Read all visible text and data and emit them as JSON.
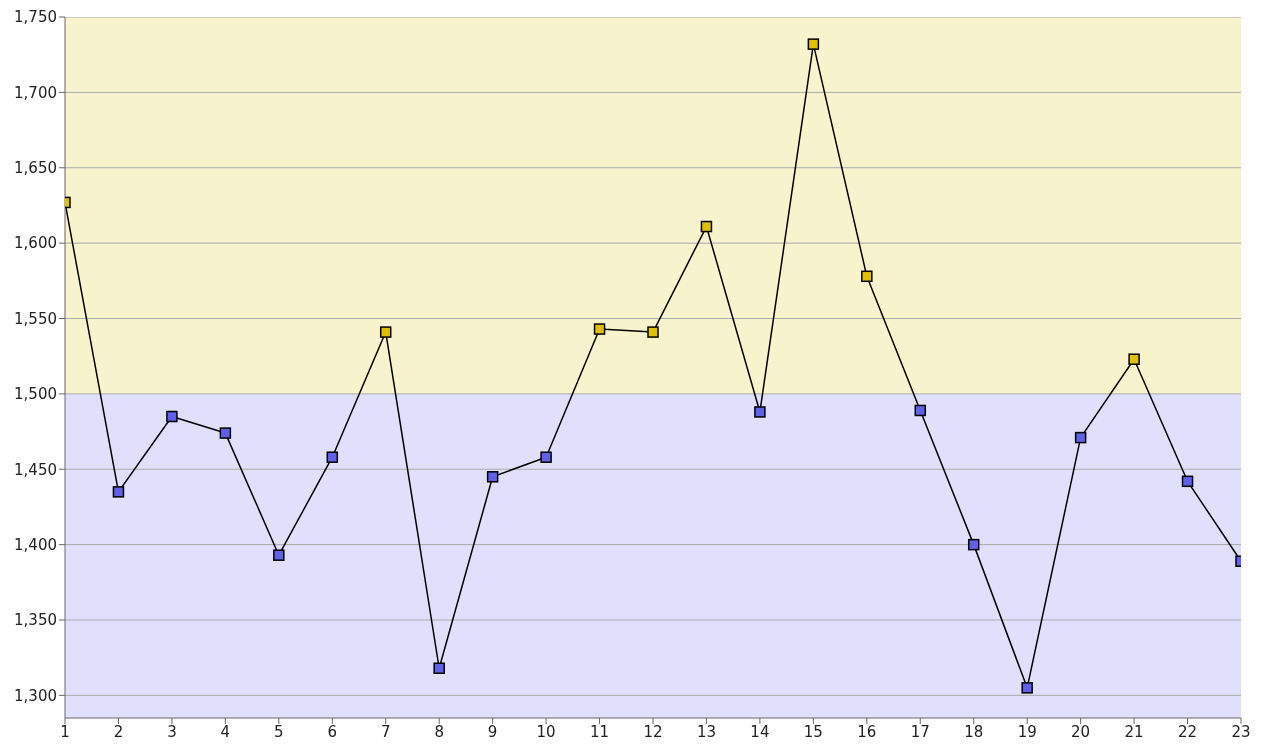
{
  "chart_data": {
    "type": "line",
    "x": [
      1,
      2,
      3,
      4,
      5,
      6,
      7,
      8,
      9,
      10,
      11,
      12,
      13,
      14,
      15,
      16,
      17,
      18,
      19,
      20,
      21,
      22,
      23
    ],
    "series": [
      {
        "color": "#000000",
        "values": [
          1627,
          1435,
          1485,
          1474,
          1393,
          1458,
          1541,
          1318,
          1445,
          1458,
          1543,
          1541,
          1611,
          1488,
          1732,
          1578,
          1489,
          1400,
          1305,
          1471,
          1523,
          1442,
          1389
        ],
        "colors": [
          "#e0c000",
          "#6060e8",
          "#6060e8",
          "#6060e8",
          "#6060e8",
          "#6060e8",
          "#e0c000",
          "#6060e8",
          "#6060e8",
          "#6060e8",
          "#e0c000",
          "#e0c000",
          "#e0c000",
          "#6060e8",
          "#e0c000",
          "#e0c000",
          "#6060e8",
          "#6060e8",
          "#6060e8",
          "#6060e8",
          "#e0c000",
          "#6060e8",
          "#6060e8"
        ]
      }
    ],
    "xlim": [
      1,
      23
    ],
    "xticks": [
      1,
      2,
      3,
      4,
      5,
      6,
      7,
      8,
      9,
      10,
      11,
      12,
      13,
      14,
      15,
      16,
      17,
      18,
      19,
      20,
      21,
      22,
      23
    ],
    "ylim": [
      1285,
      1750
    ],
    "yticks": [
      {
        "value": 1300,
        "label": "1,300"
      },
      {
        "value": 1350,
        "label": "1,350"
      },
      {
        "value": 1400,
        "label": "1,400"
      },
      {
        "value": 1450,
        "label": "1,450"
      },
      {
        "value": 1500,
        "label": "1,500"
      },
      {
        "value": 1550,
        "label": "1,550"
      },
      {
        "value": 1600,
        "label": "1,600"
      },
      {
        "value": 1650,
        "label": "1,650"
      },
      {
        "value": 1700,
        "label": "1,700"
      },
      {
        "value": 1750,
        "label": "1,750"
      }
    ],
    "bands": [
      {
        "axis": "y",
        "from": 1500,
        "to": 1750,
        "color": "#f7f3cc"
      },
      {
        "axis": "y",
        "from": 1285,
        "to": 1500,
        "color": "#e0e0fc"
      }
    ],
    "grid": "y",
    "marker": "square",
    "line_style": "solid",
    "legend": false
  }
}
